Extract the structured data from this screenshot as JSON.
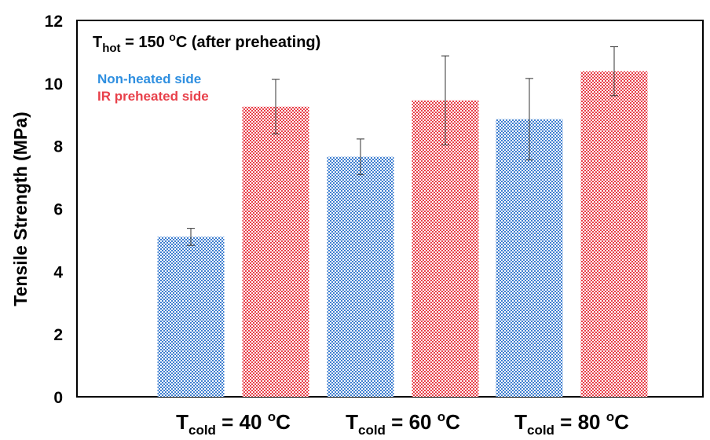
{
  "chart_data": {
    "type": "bar",
    "title": "",
    "ylabel": "Tensile Strength (MPa)",
    "xlabel": "",
    "ylim": [
      0,
      12
    ],
    "yticks": [
      "0",
      "2",
      "4",
      "6",
      "8",
      "10",
      "12"
    ],
    "grid": false,
    "annotation": {
      "prefix": "T",
      "subscript": "hot",
      "value": " = 150 ",
      "superscript": "o",
      "suffix": "C (after preheating)"
    },
    "categories": [
      {
        "prefix": "T",
        "subscript": "cold",
        "value": " = 40 ",
        "superscript": "o",
        "suffix": "C"
      },
      {
        "prefix": "T",
        "subscript": "cold",
        "value": " = 60 ",
        "superscript": "o",
        "suffix": "C"
      },
      {
        "prefix": "T",
        "subscript": "cold",
        "value": " = 80 ",
        "superscript": "o",
        "suffix": "C"
      }
    ],
    "legend_placement": "top-left",
    "series": [
      {
        "name": "Non-heated side",
        "color": "#3f7fd0",
        "pattern_colors": [
          "#2f73c8",
          "#5aa0e0",
          "#4a6fc0"
        ],
        "values": [
          5.1,
          7.65,
          8.85
        ],
        "errors": [
          0.27,
          0.57,
          1.3
        ]
      },
      {
        "name": "IR preheated side",
        "color": "#e8404a",
        "pattern_colors": [
          "#e8404a",
          "#e8404a",
          "#e8404a"
        ],
        "values": [
          9.25,
          9.45,
          10.38
        ],
        "errors": [
          0.87,
          1.42,
          0.78
        ]
      }
    ]
  }
}
